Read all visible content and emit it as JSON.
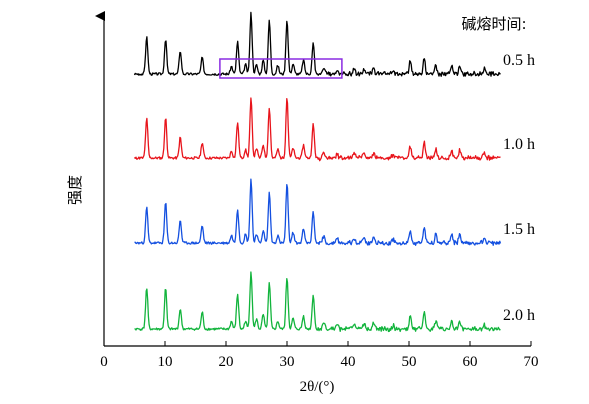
{
  "chart_data": {
    "type": "line",
    "title": "碱熔时间:",
    "xlabel": "2θ/(°)",
    "ylabel": "强度",
    "xlim": [
      0,
      70
    ],
    "xticks": [
      "0",
      "10",
      "20",
      "30",
      "40",
      "50",
      "60",
      "70"
    ],
    "grid": false,
    "legend": "right, labels beside each trace",
    "annotation": {
      "type": "box",
      "x_range": [
        19,
        39
      ],
      "color": "#8a2be2"
    },
    "peaks": {
      "x": [
        7.0,
        10.1,
        12.5,
        16.1,
        20.9,
        21.9,
        23.2,
        24.1,
        25.0,
        26.1,
        27.1,
        28.5,
        30.0,
        31.0,
        32.7,
        34.3,
        36.0,
        38.2,
        41.0,
        42.6,
        44.2,
        47.4,
        50.2,
        52.5,
        54.4,
        57.0,
        58.3,
        62.3
      ],
      "intensity": [
        0.62,
        0.6,
        0.35,
        0.27,
        0.12,
        0.55,
        0.14,
        1.0,
        0.15,
        0.22,
        0.8,
        0.13,
        0.9,
        0.16,
        0.22,
        0.55,
        0.1,
        0.07,
        0.08,
        0.08,
        0.1,
        0.06,
        0.2,
        0.26,
        0.14,
        0.13,
        0.12,
        0.08
      ]
    },
    "series": [
      {
        "name": "0.5 h",
        "color": "#000000"
      },
      {
        "name": "1.0 h",
        "color": "#e8141b"
      },
      {
        "name": "1.5 h",
        "color": "#1450e0"
      },
      {
        "name": "2.0 h",
        "color": "#12b43c"
      }
    ]
  }
}
